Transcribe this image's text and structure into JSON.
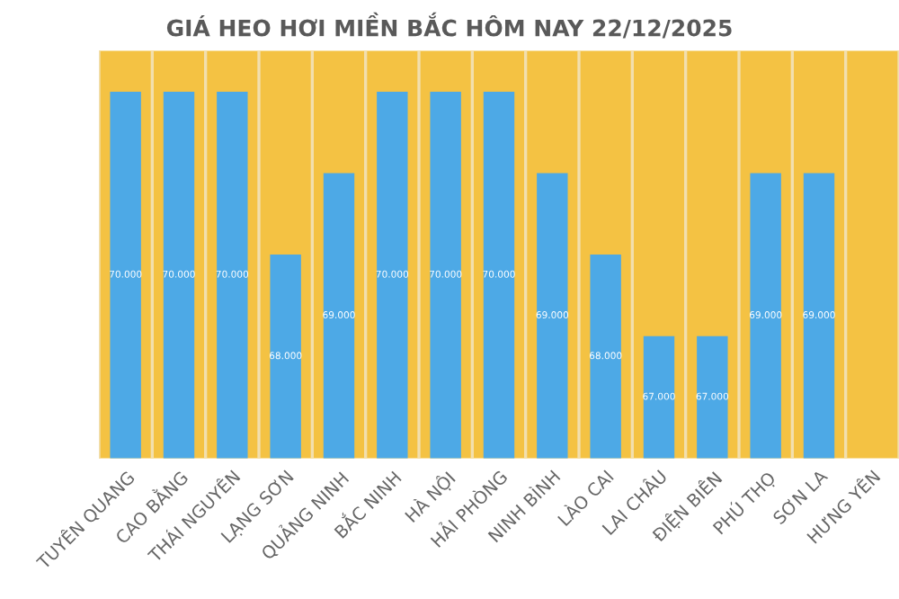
{
  "chart_data": {
    "type": "bar",
    "title": "GIÁ HEO HƠI MIỀN BẮC HÔM NAY 22/12/2025",
    "categories": [
      "TUYÊN QUANG",
      "CAO BẰNG",
      "THÁI NGUYÊN",
      "LẠNG SƠN",
      "QUẢNG NINH",
      "BẮC NINH",
      "HÀ NỘI",
      "HẢI PHÒNG",
      "NINH BÌNH",
      "LÀO CAI",
      "LAI CHÂU",
      "ĐIỆN BIÊN",
      "PHÚ THỌ",
      "SƠN LA",
      "HƯNG YÊN"
    ],
    "values": [
      70000,
      70000,
      70000,
      68000,
      69000,
      70000,
      70000,
      70000,
      69000,
      68000,
      67000,
      67000,
      69000,
      69000,
      null
    ],
    "value_labels": [
      "70.000",
      "70.000",
      "70.000",
      "68.000",
      "69.000",
      "70.000",
      "70.000",
      "70.000",
      "69.000",
      "68.000",
      "67.000",
      "67.000",
      "69.000",
      "69.000",
      null
    ],
    "color": "#4da9e6",
    "ylim": [
      65500,
      70500
    ],
    "tick_labels": "x",
    "grid": "x"
  }
}
